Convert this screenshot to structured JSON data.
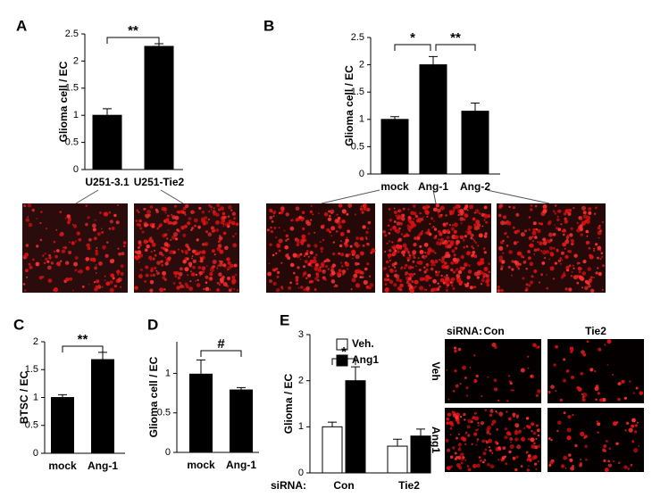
{
  "chart_data": [
    {
      "type": "bar",
      "panel": "A",
      "ylabel": "Glioma cell / EC",
      "categories": [
        "U251-3.1",
        "U251-Tie2"
      ],
      "values": [
        1.0,
        2.27
      ],
      "errors": [
        0.12,
        0.05
      ],
      "color": "#000000",
      "ylim": [
        0,
        2.5
      ],
      "yticks": [
        0,
        0.5,
        1,
        1.5,
        2,
        2.5
      ],
      "annotations": [
        "**"
      ]
    },
    {
      "type": "bar",
      "panel": "B",
      "ylabel": "Glioma cell / EC",
      "categories": [
        "mock",
        "Ang-1",
        "Ang-2"
      ],
      "values": [
        1.0,
        2.0,
        1.15
      ],
      "errors": [
        0.05,
        0.15,
        0.15
      ],
      "color": "#000000",
      "ylim": [
        0,
        2.5
      ],
      "yticks": [
        0,
        0.5,
        1,
        1.5,
        2,
        2.5
      ],
      "annotations": [
        "*",
        "**"
      ]
    },
    {
      "type": "bar",
      "panel": "C",
      "ylabel": "BTSC / EC",
      "categories": [
        "mock",
        "Ang-1"
      ],
      "values": [
        1.0,
        1.68
      ],
      "errors": [
        0.05,
        0.13
      ],
      "color": "#000000",
      "ylim": [
        0,
        2
      ],
      "yticks": [
        0,
        0.5,
        1,
        1.5,
        2
      ],
      "annotations": [
        "**"
      ]
    },
    {
      "type": "bar",
      "panel": "D",
      "ylabel": "Glioma cell / EC",
      "categories": [
        "mock",
        "Ang-1"
      ],
      "values": [
        0.99,
        0.79
      ],
      "errors": [
        0.18,
        0.03
      ],
      "color": "#000000",
      "ylim": [
        0,
        1.4
      ],
      "yticks": [
        0,
        0.5,
        1
      ],
      "annotations": [
        "#"
      ]
    },
    {
      "type": "grouped_bar",
      "panel": "E",
      "ylabel": "Glioma  / EC",
      "xlabel": "siRNA:",
      "categories": [
        "Con",
        "Tie2"
      ],
      "series": [
        {
          "name": "Veh.",
          "color": "#ffffff",
          "values": [
            1.0,
            0.58
          ],
          "errors": [
            0.1,
            0.15
          ]
        },
        {
          "name": "Ang1",
          "color": "#000000",
          "values": [
            2.0,
            0.8
          ],
          "errors": [
            0.3,
            0.15
          ]
        }
      ],
      "ylim": [
        0,
        3
      ],
      "yticks": [
        0,
        1,
        2,
        3
      ],
      "annotations": [
        "*"
      ]
    }
  ],
  "image_panel": {
    "row_label": "siRNA:",
    "columns": [
      "Con",
      "Tie2"
    ],
    "rows": [
      "Veh",
      "Ang1"
    ]
  }
}
